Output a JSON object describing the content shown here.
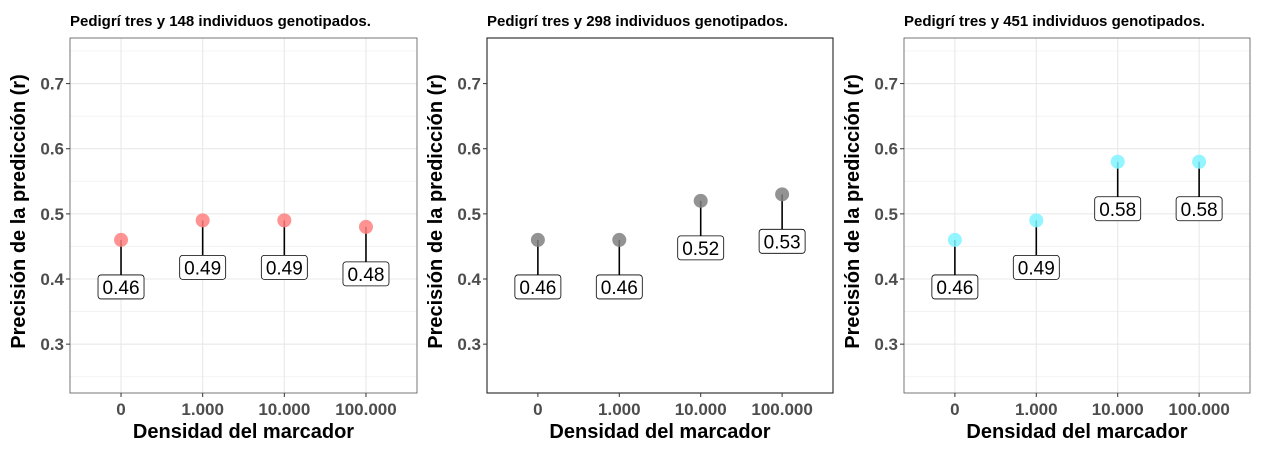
{
  "chart_data": [
    {
      "type": "scatter",
      "title": "Pedigrí tres y 148 individuos genotipados.",
      "xlabel": "Densidad del marcador",
      "ylabel": "Precisión de la predicción (r)",
      "categories": [
        "0",
        "1.000",
        "10.000",
        "100.000"
      ],
      "values": [
        0.46,
        0.49,
        0.49,
        0.48
      ],
      "labels": [
        "0.46",
        "0.49",
        "0.49",
        "0.48"
      ],
      "ylim": [
        0.225,
        0.77
      ],
      "yticks": [
        0.3,
        0.4,
        0.5,
        0.6,
        0.7
      ],
      "ytick_labels": [
        "0.3",
        "0.4",
        "0.5",
        "0.6",
        "0.7"
      ],
      "point_color": "#ff7f7f",
      "grid": true,
      "legend": "none"
    },
    {
      "type": "scatter",
      "title": "Pedigrí tres y 298 individuos genotipados.",
      "xlabel": "Densidad del marcador",
      "ylabel": "Precisión de la predicción (r)",
      "categories": [
        "0",
        "1.000",
        "10.000",
        "100.000"
      ],
      "values": [
        0.46,
        0.46,
        0.52,
        0.53
      ],
      "labels": [
        "0.46",
        "0.46",
        "0.52",
        "0.53"
      ],
      "ylim": [
        0.225,
        0.77
      ],
      "yticks": [
        0.3,
        0.4,
        0.5,
        0.6,
        0.7
      ],
      "ytick_labels": [
        "0.3",
        "0.4",
        "0.5",
        "0.6",
        "0.7"
      ],
      "point_color": "#808080",
      "grid": false,
      "legend": "none"
    },
    {
      "type": "scatter",
      "title": "Pedigrí tres y 451 individuos genotipados.",
      "xlabel": "Densidad del marcador",
      "ylabel": "Precisión de la predicción (r)",
      "categories": [
        "0",
        "1.000",
        "10.000",
        "100.000"
      ],
      "values": [
        0.46,
        0.49,
        0.58,
        0.58
      ],
      "labels": [
        "0.46",
        "0.49",
        "0.58",
        "0.58"
      ],
      "ylim": [
        0.225,
        0.77
      ],
      "yticks": [
        0.3,
        0.4,
        0.5,
        0.6,
        0.7
      ],
      "ytick_labels": [
        "0.3",
        "0.4",
        "0.5",
        "0.6",
        "0.7"
      ],
      "point_color": "#7ff3ff",
      "grid": true,
      "legend": "none"
    }
  ]
}
